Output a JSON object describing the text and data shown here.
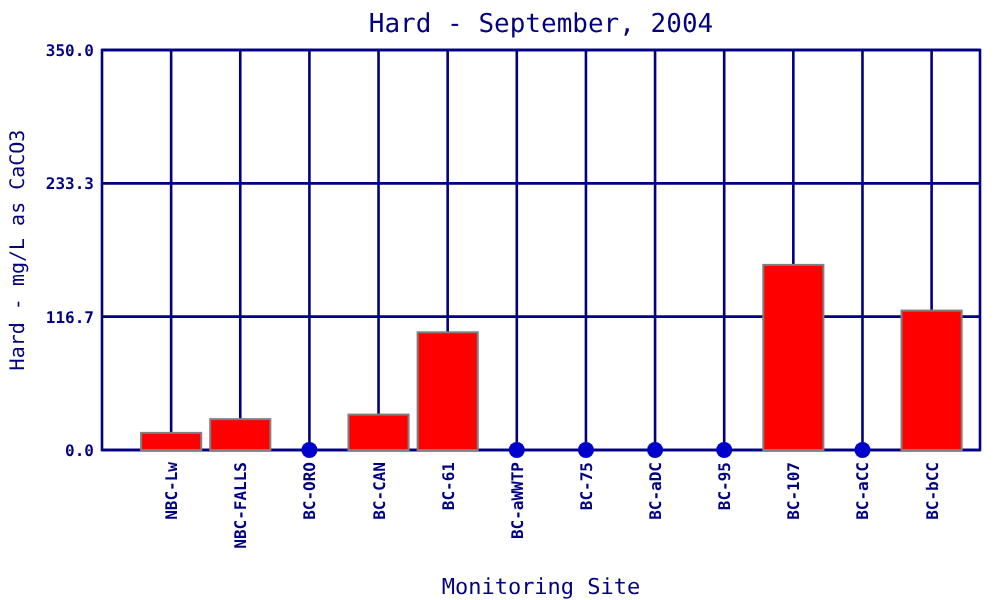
{
  "chart_data": {
    "type": "bar",
    "title": "Hard - September, 2004",
    "xlabel": "Monitoring Site",
    "ylabel": "Hard - mg/L as CaCO3",
    "categories": [
      "NBC-Lw",
      "NBC-FALLS",
      "BC-ORO",
      "BC-CAN",
      "BC-61",
      "BC-aWWTP",
      "BC-75",
      "BC-aDC",
      "BC-95",
      "BC-107",
      "BC-aCC",
      "BC-bCC"
    ],
    "series": [
      {
        "color": "#ff0000",
        "values": [
          15,
          27,
          0,
          31,
          103,
          0,
          0,
          0,
          0,
          162,
          0,
          122
        ]
      },
      {
        "type": "scatter",
        "color": "#0000cc",
        "marker": "circle",
        "x": [
          "BC-ORO",
          "BC-aWWTP",
          "BC-75",
          "BC-aDC",
          "BC-95",
          "BC-aCC"
        ],
        "values": [
          0,
          0,
          0,
          0,
          0,
          0
        ]
      }
    ],
    "ylim": [
      0,
      350
    ],
    "yticks": [
      {
        "value": 0,
        "label": "0.0"
      },
      {
        "value": 116.7,
        "label": "116.7"
      },
      {
        "value": 233.3,
        "label": "233.3"
      },
      {
        "value": 350,
        "label": "350.0"
      }
    ],
    "grid": true
  }
}
